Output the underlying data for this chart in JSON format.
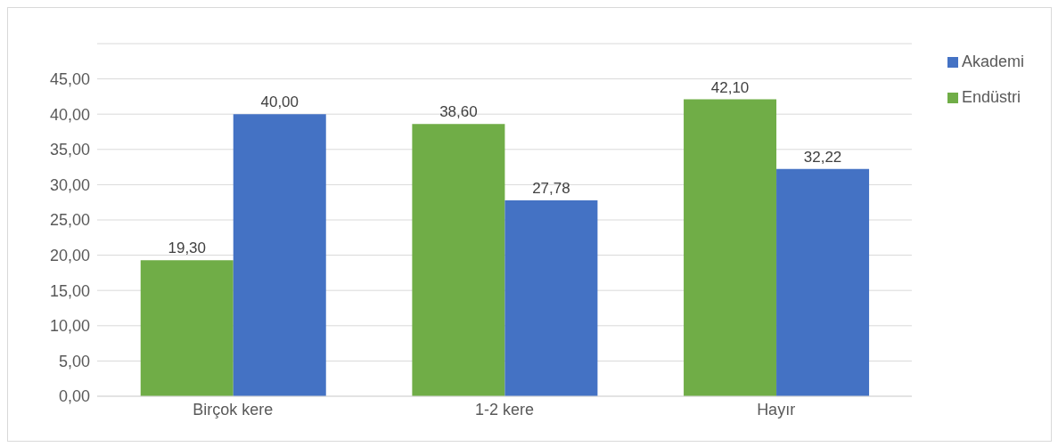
{
  "chart_data": {
    "type": "bar",
    "categories": [
      "Birçok kere",
      "1-2 kere",
      "Hayır"
    ],
    "series": [
      {
        "name": "Endüstri",
        "color": "#70ad47",
        "values": [
          19.3,
          38.6,
          42.1
        ],
        "value_labels": [
          "19,30",
          "38,60",
          "42,10"
        ]
      },
      {
        "name": "Akademi",
        "color": "#4472c4",
        "values": [
          40.0,
          27.78,
          32.22
        ],
        "value_labels": [
          "40,00",
          "27,78",
          "32,22"
        ]
      }
    ],
    "ylim": [
      0,
      50
    ],
    "yticks": [
      {
        "value": 0,
        "label": "0,00"
      },
      {
        "value": 5,
        "label": "5,00"
      },
      {
        "value": 10,
        "label": "10,00"
      },
      {
        "value": 15,
        "label": "15,00"
      },
      {
        "value": 20,
        "label": "20,00"
      },
      {
        "value": 25,
        "label": "25,00"
      },
      {
        "value": 30,
        "label": "30,00"
      },
      {
        "value": 35,
        "label": "35,00"
      },
      {
        "value": 40,
        "label": "40,00"
      },
      {
        "value": 45,
        "label": "45,00"
      },
      {
        "value": 50,
        "label": null
      }
    ],
    "grid": "y",
    "legend": "top right"
  }
}
